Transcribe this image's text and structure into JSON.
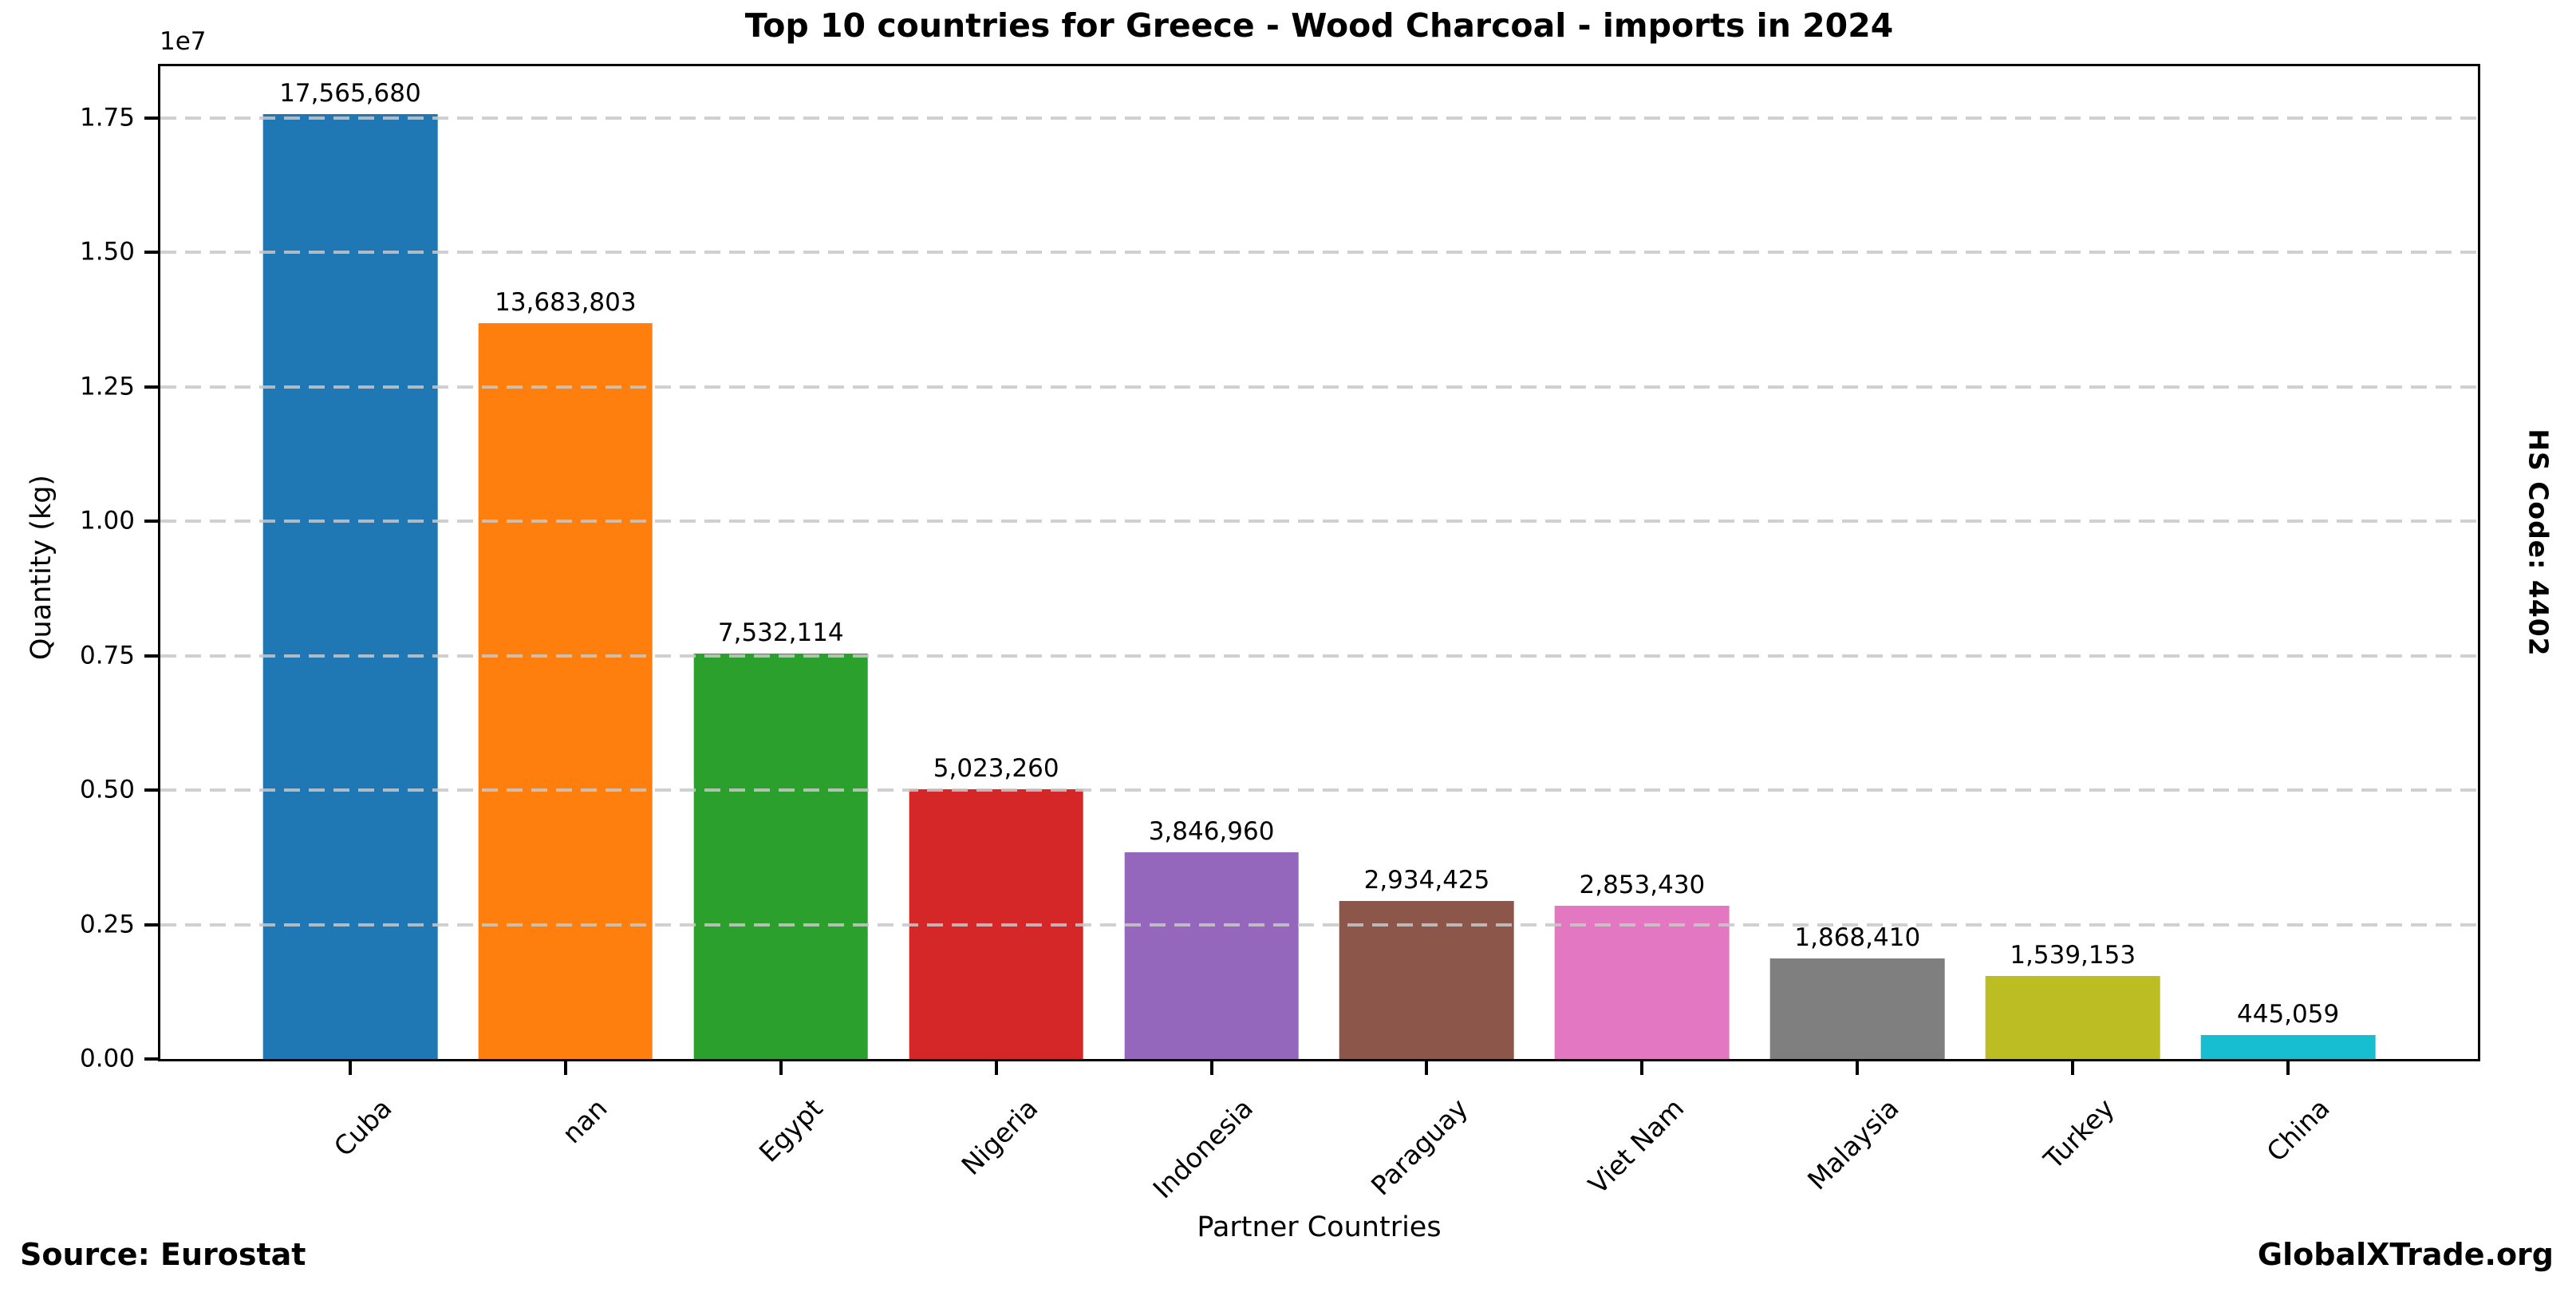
{
  "title": "Top 10 countries for Greece - Wood Charcoal - imports in 2024",
  "side_label": "HS Code: 4402",
  "footer": {
    "source": "Source: Eurostat",
    "brand": "GlobalXTrade.org"
  },
  "chart_data": {
    "type": "bar",
    "title": "Top 10 countries for Greece - Wood Charcoal - imports in 2024",
    "xlabel": "Partner Countries",
    "ylabel": "Quantity (kg)",
    "axis_offset_label": "1e7",
    "categories": [
      "Cuba",
      "nan",
      "Egypt",
      "Nigeria",
      "Indonesia",
      "Paraguay",
      "Viet Nam",
      "Malaysia",
      "Turkey",
      "China"
    ],
    "values": [
      17565680,
      13683803,
      7532114,
      5023260,
      3846960,
      2934425,
      2853430,
      1868410,
      1539153,
      445059
    ],
    "value_labels": [
      "17,565,680",
      "13,683,803",
      "7,532,114",
      "5,023,260",
      "3,846,960",
      "2,934,425",
      "2,853,430",
      "1,868,410",
      "1,539,153",
      "445,059"
    ],
    "bar_colors": [
      "#1f77b4",
      "#ff7f0e",
      "#2ca02c",
      "#d62728",
      "#9467bd",
      "#8c564b",
      "#e377c2",
      "#7f7f7f",
      "#bcbd22",
      "#17becf"
    ],
    "ylim": [
      0,
      18460000
    ],
    "yticks": {
      "values": [
        0,
        2500000,
        5000000,
        7500000,
        10000000,
        12500000,
        15000000,
        17500000
      ],
      "labels": [
        "0.00",
        "0.25",
        "0.50",
        "0.75",
        "1.00",
        "1.25",
        "1.50",
        "1.75"
      ]
    },
    "grid": "horizontal-dashed",
    "gridline_color": "#c8c8c8",
    "legend": "none"
  }
}
